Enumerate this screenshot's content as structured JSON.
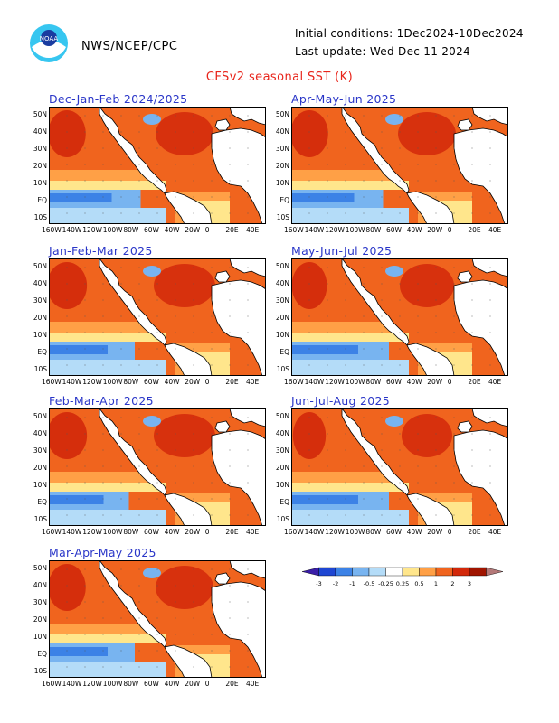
{
  "header": {
    "agency": "NWS/NCEP/CPC",
    "initial_conditions": "Initial conditions: 1Dec2024-10Dec2024",
    "last_update": "Last update: Wed Dec 11 2024",
    "title": "CFSv2 seasonal SST (K)",
    "logo_text": "NOAA",
    "logo_icon": "noaa-logo-icon"
  },
  "axes": {
    "lat_labels": [
      "50N",
      "40N",
      "30N",
      "20N",
      "10N",
      "EQ",
      "10S"
    ],
    "lon_labels": [
      "160W",
      "140W",
      "120W",
      "100W",
      "80W",
      "60W",
      "40W",
      "20W",
      "0",
      "20E",
      "40E"
    ]
  },
  "panels": [
    {
      "id": "djf",
      "title": "Dec-Jan-Feb 2024/2025",
      "warm_level": 0.8,
      "cool_level": 0.55
    },
    {
      "id": "jfm",
      "title": "Jan-Feb-Mar 2025",
      "warm_level": 0.85,
      "cool_level": 0.5
    },
    {
      "id": "fma",
      "title": "Feb-Mar-Apr 2025",
      "warm_level": 0.85,
      "cool_level": 0.45
    },
    {
      "id": "mam",
      "title": "Mar-Apr-May 2025",
      "warm_level": 0.8,
      "cool_level": 0.5
    },
    {
      "id": "amj",
      "title": "Apr-May-Jun 2025",
      "warm_level": 0.8,
      "cool_level": 0.55
    },
    {
      "id": "mjj",
      "title": "May-Jun-Jul 2025",
      "warm_level": 0.75,
      "cool_level": 0.6
    },
    {
      "id": "jja",
      "title": "Jun-Jul-Aug 2025",
      "warm_level": 0.7,
      "cool_level": 0.6
    }
  ],
  "colorbar": {
    "labels": [
      "-3",
      "-2",
      "-1",
      "-0.5",
      "-0.25",
      "0.25",
      "0.5",
      "1",
      "2",
      "3"
    ],
    "colors": [
      "#3a1ea8",
      "#1e46d2",
      "#3c82e6",
      "#78b4f0",
      "#b4dcf8",
      "#ffffff",
      "#ffe68c",
      "#ffa046",
      "#f0641e",
      "#d2280a",
      "#a01400",
      "#b47878"
    ]
  },
  "palette": {
    "land": "#ffffff",
    "coast": "#000000",
    "warm_strong": "#d2280a",
    "warm_mid": "#f0641e",
    "warm_light": "#ffa046",
    "neutral_warm": "#ffe68c",
    "cool_light": "#b4dcf8",
    "cool_mid": "#78b4f0",
    "cool_strong": "#3c82e6"
  }
}
